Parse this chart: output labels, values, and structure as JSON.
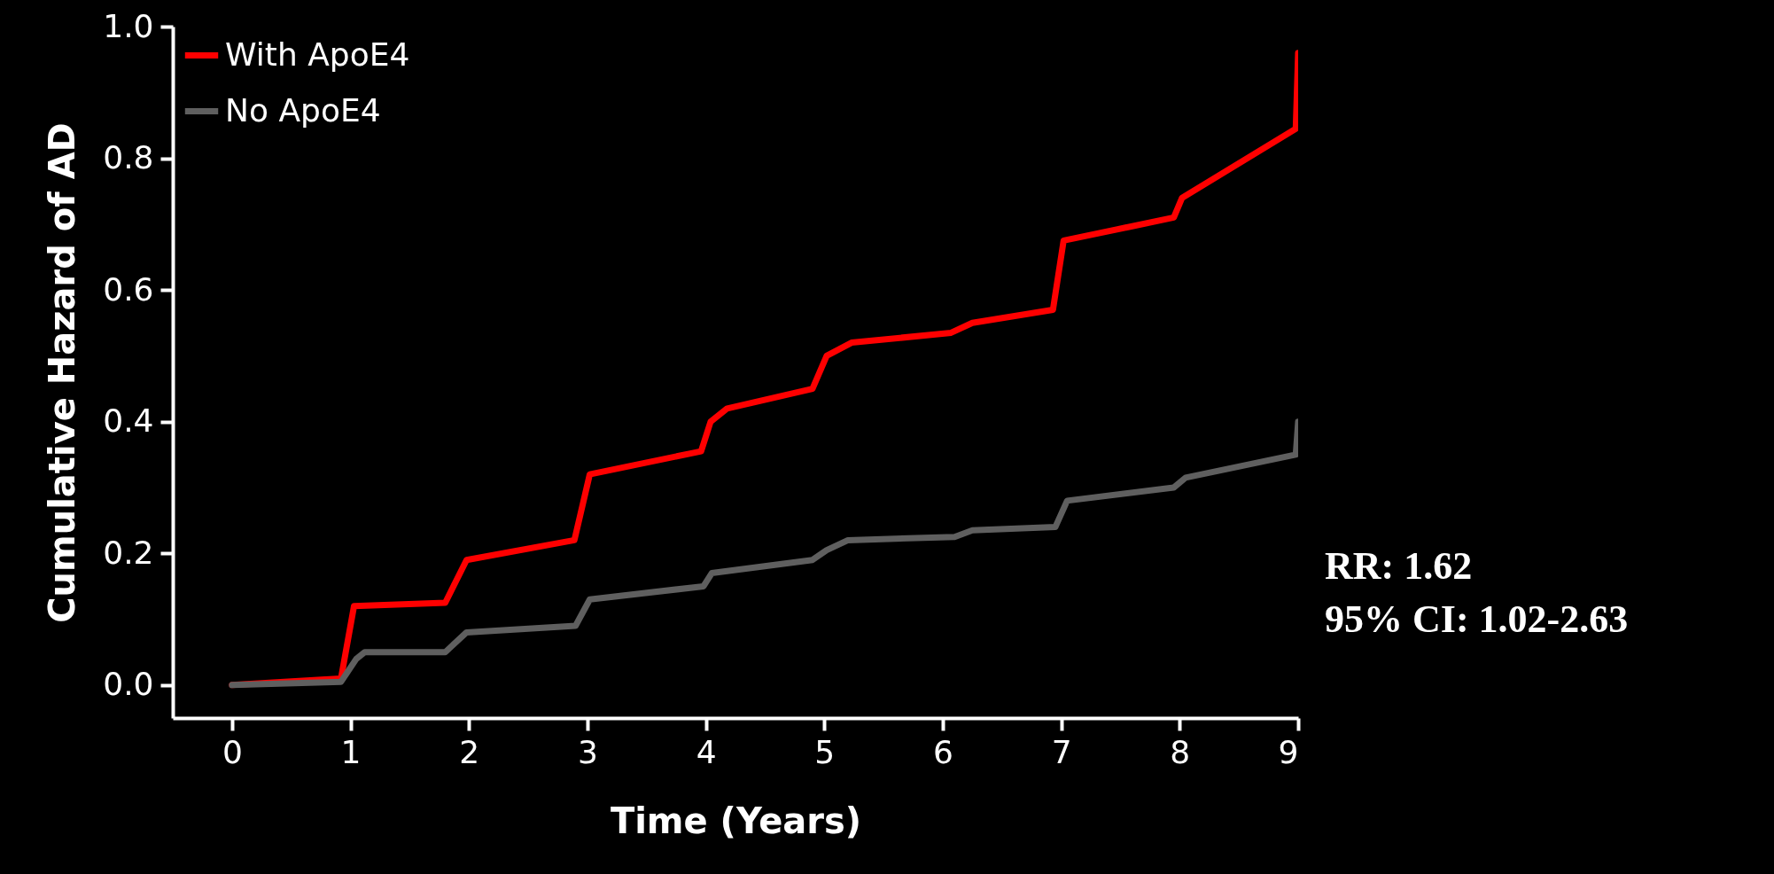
{
  "chart_data": {
    "type": "line",
    "xlabel": "Time (Years)",
    "ylabel": "Cumulative Hazard of AD",
    "xlim": [
      -0.5,
      9
    ],
    "ylim": [
      -0.05,
      1.0
    ],
    "xticks": [
      0,
      1,
      2,
      3,
      4,
      5,
      6,
      7,
      8,
      9
    ],
    "yticks": [
      {
        "value": 0,
        "label": "0.0"
      },
      {
        "value": 0.2,
        "label": "0.2"
      },
      {
        "value": 0.4,
        "label": "0.4"
      },
      {
        "value": 0.6,
        "label": "0.6"
      },
      {
        "value": 0.8,
        "label": "0.8"
      },
      {
        "value": 1,
        "label": "1.0"
      }
    ],
    "grid": false,
    "legend": "top left",
    "line_style": "solid",
    "marker": "none",
    "annotations": [
      "RR: 1.62",
      "95% CI: 1.02-2.63"
    ],
    "series": [
      {
        "name": "With ApoE4",
        "color": "#ff0000",
        "x": [
          0,
          0.92,
          1.03,
          1.8,
          1.98,
          2.89,
          3.02,
          3.96,
          4.04,
          4.18,
          4.9,
          5.02,
          5.23,
          6.07,
          6.25,
          6.93,
          7.02,
          7.95,
          8.02,
          8.98,
          9.0
        ],
        "values": [
          0,
          0.01,
          0.12,
          0.125,
          0.19,
          0.22,
          0.32,
          0.355,
          0.4,
          0.42,
          0.45,
          0.5,
          0.52,
          0.535,
          0.55,
          0.57,
          0.675,
          0.71,
          0.74,
          0.845,
          0.96
        ]
      },
      {
        "name": "No ApoE4",
        "color": "#5f5f5f",
        "x": [
          0,
          0.92,
          1.05,
          1.12,
          1.8,
          1.98,
          2.9,
          3.02,
          3.98,
          4.05,
          4.9,
          5.02,
          5.2,
          6.1,
          6.25,
          6.95,
          7.05,
          7.95,
          8.05,
          8.98,
          9.0
        ],
        "values": [
          0,
          0.005,
          0.04,
          0.05,
          0.05,
          0.08,
          0.09,
          0.13,
          0.15,
          0.17,
          0.19,
          0.205,
          0.22,
          0.225,
          0.235,
          0.24,
          0.28,
          0.3,
          0.315,
          0.35,
          0.4
        ]
      }
    ]
  }
}
